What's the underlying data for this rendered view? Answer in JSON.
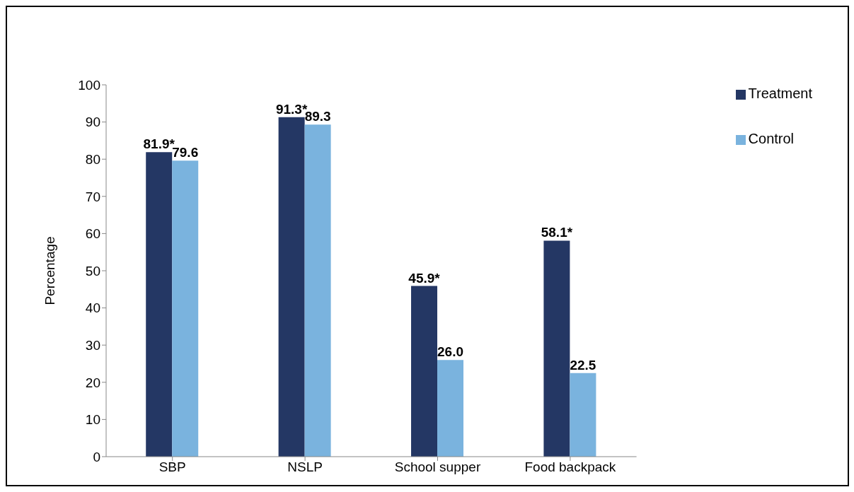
{
  "chart_data": {
    "type": "bar",
    "ylabel": "Percentage",
    "categories": [
      "SBP",
      "NSLP",
      "School supper",
      "Food backpack"
    ],
    "series": [
      {
        "name": "Treatment",
        "color": "#243764",
        "values": [
          81.9,
          91.3,
          45.9,
          58.1
        ],
        "value_labels": [
          "81.9*",
          "91.3*",
          "45.9*",
          "58.1*"
        ]
      },
      {
        "name": "Control",
        "color": "#7ab3de",
        "values": [
          79.6,
          89.3,
          26.0,
          22.5
        ],
        "value_labels": [
          "79.6",
          "89.3",
          "26.0",
          "22.5"
        ]
      }
    ],
    "ylim": [
      0,
      100
    ],
    "yticks": [
      0,
      10,
      20,
      30,
      40,
      50,
      60,
      70,
      80,
      90,
      100
    ],
    "grid": false,
    "legend": "top right"
  }
}
